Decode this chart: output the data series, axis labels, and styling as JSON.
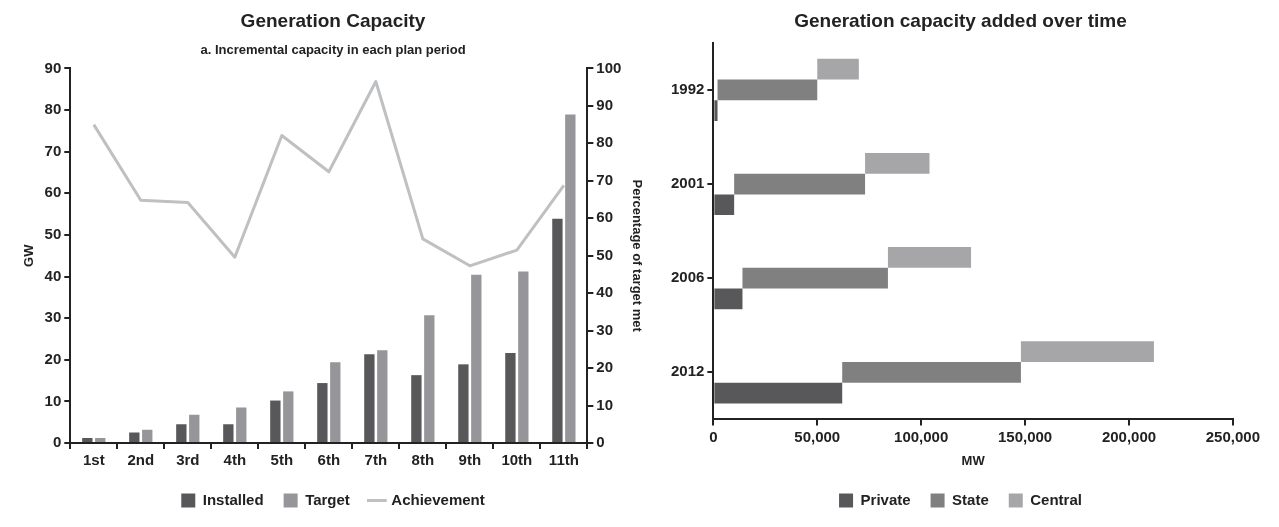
{
  "chart_data": [
    {
      "type": "bar",
      "title": "Generation Capacity",
      "subtitle": "a. Incremental capacity in each plan period",
      "ylabel": "GW",
      "y2label": "Percentage of target met",
      "categories": [
        "1st",
        "2nd",
        "3rd",
        "4th",
        "5th",
        "6th",
        "7th",
        "8th",
        "9th",
        "10th",
        "11th"
      ],
      "series": [
        {
          "name": "Installed",
          "color": "#58585a",
          "values": [
            1.2,
            2.5,
            4.5,
            4.5,
            10.2,
            14.4,
            21.3,
            16.3,
            18.9,
            21.6,
            53.9
          ]
        },
        {
          "name": "Target",
          "color": "#96969a",
          "values": [
            1.2,
            3.2,
            6.8,
            8.5,
            12.4,
            19.4,
            22.3,
            30.7,
            40.4,
            41.2,
            78.9
          ]
        },
        {
          "name": "Achievement",
          "type": "line",
          "axis": "y2",
          "color": "#bfc0c2",
          "values": [
            85,
            64.8,
            64.2,
            49.6,
            82.1,
            72.4,
            96.5,
            54.5,
            47.3,
            51.5,
            68.8
          ]
        }
      ],
      "ylim": [
        0,
        90
      ],
      "yticks": [
        0,
        10,
        20,
        30,
        40,
        50,
        60,
        70,
        80,
        90
      ],
      "y2lim": [
        0,
        100
      ],
      "y2ticks": [
        0,
        10,
        20,
        30,
        40,
        50,
        60,
        70,
        80,
        90,
        100
      ],
      "legend": "bottom"
    },
    {
      "type": "bar",
      "orientation": "horizontal",
      "title": "Generation capacity added over time",
      "xlabel": "MW",
      "categories": [
        "1992",
        "2001",
        "2006",
        "2012"
      ],
      "series": [
        {
          "name": "Private",
          "color": "#58585a",
          "base": [
            0,
            0,
            0,
            0
          ],
          "values": [
            2000,
            10000,
            14000,
            62000
          ]
        },
        {
          "name": "State",
          "color": "#808080",
          "base": [
            2000,
            10000,
            14000,
            62000
          ],
          "values": [
            48000,
            63000,
            70000,
            86000
          ]
        },
        {
          "name": "Central",
          "color": "#a6a6a8",
          "base": [
            50000,
            73000,
            84000,
            148000
          ],
          "values": [
            20000,
            31000,
            40000,
            64000
          ]
        }
      ],
      "xlim": [
        0,
        250000
      ],
      "xticks": [
        0,
        {
          "value": 50000,
          "label": "50,000"
        },
        {
          "value": 100000,
          "label": "100,000"
        },
        {
          "value": 150000,
          "label": "150,000"
        },
        {
          "value": 200000,
          "label": "200,000"
        },
        {
          "value": 250000,
          "label": "250,000"
        }
      ],
      "legend": "bottom"
    }
  ]
}
